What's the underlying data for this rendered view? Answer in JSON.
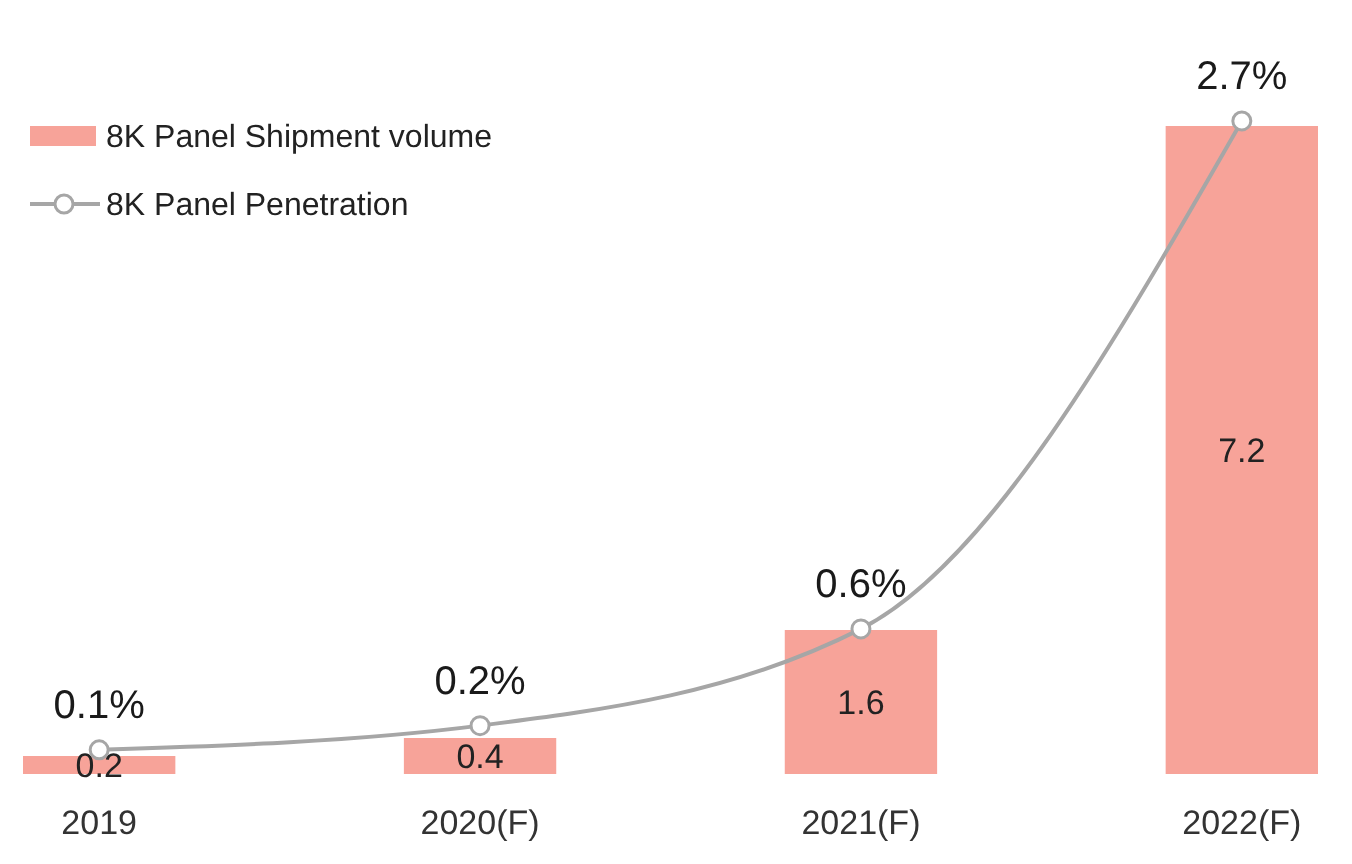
{
  "chart_data": {
    "type": "bar",
    "categories": [
      "2019",
      "2020(F)",
      "2021(F)",
      "2022(F)"
    ],
    "series": [
      {
        "name": "8K Panel Shipment volume",
        "color": "#f7a399",
        "values": [
          0.2,
          0.4,
          1.6,
          7.2
        ],
        "value_labels": [
          "0.2",
          "0.4",
          "1.6",
          "7.2"
        ]
      },
      {
        "name": "8K Panel Penetration",
        "type": "line",
        "axis": "y2",
        "color": "#a6a6a6",
        "values": [
          0.1,
          0.2,
          0.6,
          2.7
        ],
        "value_labels": [
          "0.1%",
          "0.2%",
          "0.6%",
          "2.7%"
        ]
      }
    ],
    "ylim": [
      0,
      8.6
    ],
    "y2lim": [
      0,
      3.2
    ],
    "tick_labels": "x",
    "legend": "top left",
    "marker": "circle"
  }
}
